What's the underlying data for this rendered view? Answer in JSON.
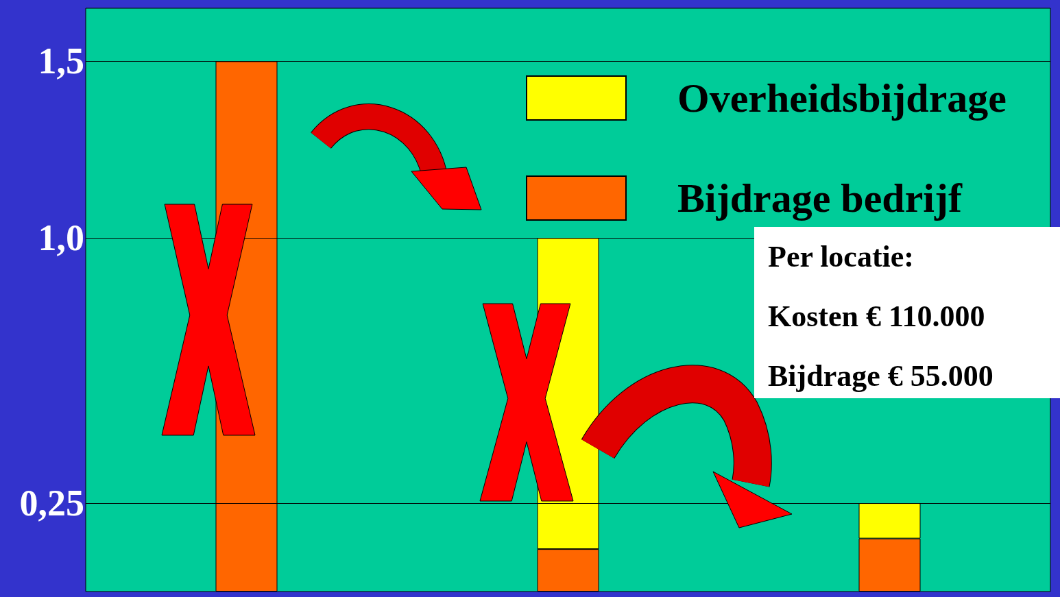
{
  "chart_data": {
    "type": "bar",
    "stacked": true,
    "categories": [
      null,
      null,
      null
    ],
    "series": [
      {
        "name": "Bijdrage bedrijf",
        "color": "#ff6600",
        "values": [
          1.5,
          0.12,
          0.15
        ]
      },
      {
        "name": "Overheidsbijdrage",
        "color": "#ffff00",
        "values": [
          null,
          0.88,
          0.1
        ]
      }
    ],
    "ylim": [
      0,
      1.65
    ],
    "yticks": [
      {
        "value": 0.25,
        "label": "0,25"
      },
      {
        "value": 1.0,
        "label": "1,0"
      },
      {
        "value": 1.5,
        "label": "1,5"
      }
    ],
    "grid": "y",
    "legend": "top right",
    "annotations": [
      "Per locatie:",
      "Kosten € 110.000",
      "Bijdrage € 55.000"
    ]
  }
}
